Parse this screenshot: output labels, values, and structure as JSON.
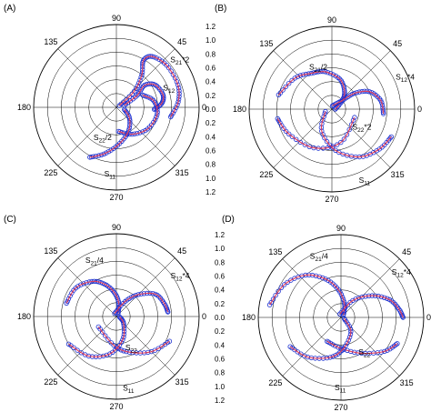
{
  "colors": {
    "simulated": "#e03a5a",
    "measured": "#1b2fd0",
    "axis": "#000000"
  },
  "chart_data": [
    {
      "panel": "(A)",
      "type": "polar",
      "rlim": [
        0,
        1.2
      ],
      "r_ticks": [
        "0.0",
        "0.2",
        "0.4",
        "0.6",
        "0.8",
        "1.0",
        "1.2"
      ],
      "angle_ticks": [
        "0",
        "45",
        "90",
        "135",
        "180",
        "225",
        "270",
        "315"
      ],
      "series": [
        {
          "name": "S21*2",
          "mag": [
            0.05,
            0.35,
            0.6,
            0.78,
            0.9,
            0.95,
            0.95,
            0.9,
            0.8
          ],
          "angle_deg": [
            30,
            42,
            52,
            60,
            55,
            40,
            20,
            5,
            -10
          ]
        },
        {
          "name": "S12",
          "mag": [
            0.12,
            0.35,
            0.52,
            0.65,
            0.7,
            0.66,
            0.55
          ],
          "angle_deg": [
            15,
            30,
            38,
            30,
            15,
            5,
            -3
          ]
        },
        {
          "name": "S22/2",
          "mag": [
            0.35,
            0.45,
            0.55,
            0.6,
            0.55,
            0.42
          ],
          "angle_deg": [
            -85,
            -60,
            -35,
            -10,
            10,
            25
          ]
        },
        {
          "name": "S11",
          "mag": [
            0.82,
            0.7,
            0.55,
            0.4,
            0.25,
            0.12
          ],
          "angle_deg": [
            -118,
            -105,
            -88,
            -65,
            -40,
            -15
          ]
        }
      ]
    },
    {
      "panel": "(B)",
      "type": "polar",
      "rlim": [
        0,
        1.2
      ],
      "r_ticks": [
        "0.0",
        "0.2",
        "0.4",
        "0.6",
        "0.8",
        "1.0",
        "1.2"
      ],
      "angle_ticks": [
        "0",
        "45",
        "90",
        "135",
        "180",
        "225",
        "270",
        "315"
      ],
      "series": [
        {
          "name": "S21/2",
          "mag": [
            0.8,
            0.7,
            0.6,
            0.55,
            0.45,
            0.32,
            0.2,
            0.05
          ],
          "angle_deg": [
            165,
            140,
            120,
            100,
            75,
            55,
            40,
            0
          ]
        },
        {
          "name": "S12*4",
          "mag": [
            0.05,
            0.2,
            0.4,
            0.6,
            0.72,
            0.75
          ],
          "angle_deg": [
            80,
            40,
            35,
            25,
            10,
            -5
          ]
        },
        {
          "name": "S22*2",
          "mag": [
            0.35,
            0.5,
            0.62,
            0.72,
            0.8
          ],
          "angle_deg": [
            -20,
            -75,
            -115,
            -150,
            -170
          ]
        },
        {
          "name": "S11",
          "mag": [
            0.1,
            0.35,
            0.6,
            0.8,
            0.9,
            0.95
          ],
          "angle_deg": [
            -160,
            -115,
            -85,
            -60,
            -40,
            -25
          ]
        }
      ]
    },
    {
      "panel": "(C)",
      "type": "polar",
      "rlim": [
        0,
        1.2
      ],
      "r_ticks": [
        "0.0",
        "0.2",
        "0.4",
        "0.6",
        "0.8",
        "1.0",
        "1.2"
      ],
      "angle_ticks": [
        "0",
        "45",
        "90",
        "135",
        "180",
        "225",
        "270",
        "315"
      ],
      "series": [
        {
          "name": "S21/4",
          "mag": [
            0.75,
            0.72,
            0.62,
            0.5,
            0.35,
            0.2,
            0.05
          ],
          "angle_deg": [
            165,
            145,
            125,
            110,
            95,
            80,
            60
          ]
        },
        {
          "name": "S12*4",
          "mag": [
            0.05,
            0.25,
            0.45,
            0.65,
            0.72,
            0.75
          ],
          "angle_deg": [
            120,
            60,
            45,
            30,
            15,
            5
          ]
        },
        {
          "name": "S22",
          "mag": [
            0.3,
            0.42,
            0.55,
            0.72,
            0.85
          ],
          "angle_deg": [
            -150,
            -95,
            -70,
            -45,
            -25
          ]
        },
        {
          "name": "S11",
          "mag": [
            0.8,
            0.7,
            0.55,
            0.35,
            0.15,
            0.05
          ],
          "angle_deg": [
            -150,
            -125,
            -100,
            -75,
            -45,
            -10
          ]
        }
      ]
    },
    {
      "panel": "(D)",
      "type": "polar",
      "rlim": [
        0,
        1.2
      ],
      "r_ticks": [
        "0.0",
        "0.2",
        "0.4",
        "0.6",
        "0.8",
        "1.0",
        "1.2"
      ],
      "angle_ticks": [
        "0",
        "45",
        "90",
        "135",
        "180",
        "225",
        "270",
        "315"
      ],
      "series": [
        {
          "name": "S21/4",
          "mag": [
            1.05,
            0.95,
            0.8,
            0.6,
            0.4,
            0.2,
            0.05
          ],
          "angle_deg": [
            170,
            150,
            130,
            112,
            95,
            75,
            45
          ]
        },
        {
          "name": "S12*4",
          "mag": [
            0.05,
            0.3,
            0.55,
            0.75,
            0.85,
            0.9
          ],
          "angle_deg": [
            110,
            55,
            35,
            20,
            8,
            0
          ]
        },
        {
          "name": "S22",
          "mag": [
            0.4,
            0.45,
            0.6,
            0.8,
            0.9
          ],
          "angle_deg": [
            -120,
            -90,
            -60,
            -38,
            -25
          ]
        },
        {
          "name": "S11",
          "mag": [
            0.85,
            0.75,
            0.6,
            0.45,
            0.25,
            0.05
          ],
          "angle_deg": [
            -150,
            -130,
            -105,
            -85,
            -55,
            -20
          ]
        }
      ]
    }
  ]
}
